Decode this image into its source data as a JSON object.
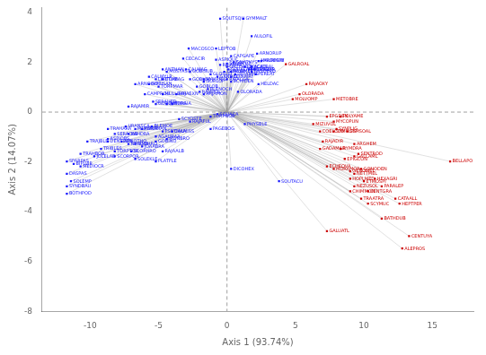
{
  "chart_data": {
    "type": "scatter",
    "xlabel": "Axis 1 (93.74%)",
    "ylabel": "Axis 2 (14.07%)",
    "xlim": [
      -13.5,
      18
    ],
    "ylim": [
      -8,
      4.2
    ],
    "xticks": [
      -10,
      -5,
      0,
      5,
      10,
      15
    ],
    "yticks": [
      4,
      2,
      0,
      -2,
      -4,
      -6,
      -8
    ],
    "grid": false,
    "data_labels": true,
    "series": [
      {
        "color": "#1a1aff",
        "marker": "square",
        "points": [
          {
            "label": "SQUTSQU",
            "x": -0.5,
            "y": 3.75
          },
          {
            "label": "GYMMALT",
            "x": 1.2,
            "y": 3.75
          },
          {
            "label": "AULOFIL",
            "x": 1.8,
            "y": 3.05
          },
          {
            "label": "MACOSCO",
            "x": -2.8,
            "y": 2.55
          },
          {
            "label": "LEPTOB",
            "x": -0.8,
            "y": 2.55
          },
          {
            "label": "ARNORUP",
            "x": 2.2,
            "y": 2.35
          },
          {
            "label": "CAPGAPE",
            "x": 0.3,
            "y": 2.25
          },
          {
            "label": "ARDESPY",
            "x": 2.5,
            "y": 2.05
          },
          {
            "label": "CECACIR",
            "x": -3.2,
            "y": 2.15
          },
          {
            "label": "ASPIOUC",
            "x": -0.8,
            "y": 2.1
          },
          {
            "label": "GNATHYS",
            "x": 0.5,
            "y": 2.0
          },
          {
            "label": "SCORELO",
            "x": 0.0,
            "y": 1.95
          },
          {
            "label": "RAJAMAE",
            "x": -0.5,
            "y": 1.9
          },
          {
            "label": "GAZDAED",
            "x": 0.0,
            "y": 1.82
          },
          {
            "label": "ACATRAL",
            "x": 1.8,
            "y": 1.82
          },
          {
            "label": "MAURMUB",
            "x": 2.3,
            "y": 2.05
          },
          {
            "label": "ANTHAN",
            "x": -4.7,
            "y": 1.72
          },
          {
            "label": "MUSTAST",
            "x": -4.4,
            "y": 1.62
          },
          {
            "label": "CALMAG",
            "x": -3.0,
            "y": 1.72
          },
          {
            "label": "GOBISUB",
            "x": -2.7,
            "y": 1.62
          },
          {
            "label": "RAJAMEL",
            "x": 0.3,
            "y": 1.62
          },
          {
            "label": "TRISCAP",
            "x": -0.2,
            "y": 1.62
          },
          {
            "label": "TRIGLYR",
            "x": 2.0,
            "y": 1.72
          },
          {
            "label": "CALMYLR",
            "x": -5.7,
            "y": 1.42
          },
          {
            "label": "LEPTCAE",
            "x": -5.2,
            "y": 1.32
          },
          {
            "label": "ETHMAG",
            "x": -4.7,
            "y": 1.32
          },
          {
            "label": "GOBLIM",
            "x": -2.7,
            "y": 1.32
          },
          {
            "label": "RAJACLA",
            "x": 0.0,
            "y": 1.32
          },
          {
            "label": "GORLOP",
            "x": -1.7,
            "y": 1.22
          },
          {
            "label": "ARNOIMP",
            "x": -6.7,
            "y": 1.12
          },
          {
            "label": "GOBISAN",
            "x": -5.7,
            "y": 1.12
          },
          {
            "label": "TORPMAR",
            "x": -5.0,
            "y": 1.02
          },
          {
            "label": "GOBLOB",
            "x": -2.2,
            "y": 1.02
          },
          {
            "label": "BLENOCH",
            "x": -1.4,
            "y": 0.92
          },
          {
            "label": "RAJAPOL",
            "x": -2.0,
            "y": 0.82
          },
          {
            "label": "CAMPROU",
            "x": -6.0,
            "y": 0.72
          },
          {
            "label": "MULLBAR",
            "x": -4.7,
            "y": 0.72
          },
          {
            "label": "RAJAEXN",
            "x": -3.7,
            "y": 0.72
          },
          {
            "label": "RAJAMON",
            "x": -1.7,
            "y": 0.72
          },
          {
            "label": "SERAHED",
            "x": -5.4,
            "y": 0.42
          },
          {
            "label": "GORQIM",
            "x": -5.2,
            "y": 0.32
          },
          {
            "label": "PHYMIG",
            "x": -4.4,
            "y": 0.32
          },
          {
            "label": "TORAIA",
            "x": -4.0,
            "y": 0.32
          },
          {
            "label": "RAJAMIR",
            "x": -7.2,
            "y": 0.22
          },
          {
            "label": "RAJAFUL",
            "x": -2.7,
            "y": -0.38
          },
          {
            "label": "SCYOSTE",
            "x": -3.5,
            "y": -0.28
          },
          {
            "label": "URANSCA",
            "x": -7.4,
            "y": -0.58
          },
          {
            "label": "BLEMOE",
            "x": -5.5,
            "y": -0.58
          },
          {
            "label": "MUKMOR",
            "x": -6.7,
            "y": -0.68
          },
          {
            "label": "PORFMAN",
            "x": -6.2,
            "y": -0.68
          },
          {
            "label": "PSETMAA",
            "x": -4.7,
            "y": -0.78
          },
          {
            "label": "CALMISS",
            "x": -4.0,
            "y": -0.78
          },
          {
            "label": "TRAHARA",
            "x": -8.7,
            "y": -0.68
          },
          {
            "label": "SERACAB",
            "x": -8.2,
            "y": -0.88
          },
          {
            "label": "RAHDRA",
            "x": -7.2,
            "y": -0.88
          },
          {
            "label": "AGALMAA",
            "x": -5.2,
            "y": -0.98
          },
          {
            "label": "MONBRO",
            "x": -4.4,
            "y": -1.08
          },
          {
            "label": "ASPIOBS",
            "x": -8.7,
            "y": -1.08
          },
          {
            "label": "ARNOTHO",
            "x": -7.7,
            "y": -1.18
          },
          {
            "label": "GOBINO",
            "x": -5.2,
            "y": -1.18
          },
          {
            "label": "DENTDEN",
            "x": -8.7,
            "y": -1.18
          },
          {
            "label": "SCOHRO",
            "x": -6.7,
            "y": -1.28
          },
          {
            "label": "NPHIMB",
            "x": -7.2,
            "y": -1.28
          },
          {
            "label": "JUAABRA",
            "x": -6.2,
            "y": -1.38
          },
          {
            "label": "TRAJBLE",
            "x": -10.2,
            "y": -1.18
          },
          {
            "label": "TRIBLES",
            "x": -9.2,
            "y": -1.48
          },
          {
            "label": "TORPTOR",
            "x": -8.2,
            "y": -1.58
          },
          {
            "label": "SCORHRO",
            "x": -7.0,
            "y": -1.58
          },
          {
            "label": "RAJAALB",
            "x": -4.7,
            "y": -1.58
          },
          {
            "label": "TRAHBOB",
            "x": -10.7,
            "y": -1.68
          },
          {
            "label": "JOLELAB",
            "x": -9.7,
            "y": -1.78
          },
          {
            "label": "SCORPOR",
            "x": -8.2,
            "y": -1.78
          },
          {
            "label": "SOLEKLE",
            "x": -6.7,
            "y": -1.88
          },
          {
            "label": "PLATFLE",
            "x": -5.2,
            "y": -1.98
          },
          {
            "label": "SPARPAS",
            "x": -11.7,
            "y": -1.98
          },
          {
            "label": "BIPLVIR",
            "x": -11.2,
            "y": -2.08
          },
          {
            "label": "MEDIOCR",
            "x": -10.7,
            "y": -2.18
          },
          {
            "label": "DASPAS",
            "x": -11.7,
            "y": -2.48
          },
          {
            "label": "SOLEMP",
            "x": -11.4,
            "y": -2.78
          },
          {
            "label": "SYNDBAU",
            "x": -11.7,
            "y": -2.98
          },
          {
            "label": "BOTHPOD",
            "x": -11.7,
            "y": -3.28
          },
          {
            "label": "SOUTACU",
            "x": 3.8,
            "y": -2.78
          },
          {
            "label": "SQUACA",
            "x": -0.7,
            "y": -0.08
          },
          {
            "label": "TORPNOB",
            "x": -1.2,
            "y": -0.18
          },
          {
            "label": "PAGEBOG",
            "x": -1.2,
            "y": -0.68
          },
          {
            "label": "DICOHEX",
            "x": 0.3,
            "y": -2.28
          },
          {
            "label": "PHYSBLE",
            "x": 1.3,
            "y": -0.48
          },
          {
            "label": "GLOSLEI",
            "x": -1.2,
            "y": 1.52
          },
          {
            "label": "GANDIS",
            "x": -0.7,
            "y": 1.42
          },
          {
            "label": "ECHIDEN",
            "x": 0.3,
            "y": 1.22
          },
          {
            "label": "HELDAC",
            "x": 2.3,
            "y": 1.12
          },
          {
            "label": "OLORADA",
            "x": 0.8,
            "y": 0.82
          },
          {
            "label": "NYMPNIG",
            "x": -1.7,
            "y": 1.32
          },
          {
            "label": "SQUALAR",
            "x": 0.1,
            "y": 1.72
          },
          {
            "label": "LEPAMHS",
            "x": 0.6,
            "y": 1.52
          },
          {
            "label": "LEPAMRY",
            "x": 0.3,
            "y": 1.42
          },
          {
            "label": "BASOPRO",
            "x": 1.8,
            "y": 1.62
          },
          {
            "label": "PEREAT",
            "x": 2.1,
            "y": 1.52
          },
          {
            "label": "MICHAS",
            "x": 1.6,
            "y": 1.72
          },
          {
            "label": "MICSOPA",
            "x": 1.8,
            "y": 1.72
          },
          {
            "label": "LEPICAU",
            "x": 1.3,
            "y": 1.82
          }
        ]
      },
      {
        "color": "#cc0000",
        "marker": "square",
        "points": [
          {
            "label": "GALROAL",
            "x": 4.3,
            "y": 1.92
          },
          {
            "label": "RAJAOXY",
            "x": 5.8,
            "y": 1.12
          },
          {
            "label": "MOLVOMP",
            "x": 4.8,
            "y": 0.52
          },
          {
            "label": "OLORADA",
            "x": 5.3,
            "y": 0.72
          },
          {
            "label": "METOBRE",
            "x": 7.8,
            "y": 0.52
          },
          {
            "label": "POLYAME",
            "x": 8.3,
            "y": -0.18
          },
          {
            "label": "EPGDEN",
            "x": 7.3,
            "y": -0.18
          },
          {
            "label": "MYCOPUN",
            "x": 7.8,
            "y": -0.38
          },
          {
            "label": "MIZUVOL",
            "x": 6.3,
            "y": -0.48
          },
          {
            "label": "COELCOD",
            "x": 6.8,
            "y": -0.78
          },
          {
            "label": "SYMHLIG",
            "x": 7.8,
            "y": -0.78
          },
          {
            "label": "SYNPLIG",
            "x": 8.0,
            "y": -0.68
          },
          {
            "label": "GALUATL",
            "x": 7.3,
            "y": -4.78
          },
          {
            "label": "SYMSOAL",
            "x": 8.8,
            "y": -0.78
          },
          {
            "label": "RAJADIR",
            "x": 7.0,
            "y": -1.18
          },
          {
            "label": "GADAMAR",
            "x": 6.8,
            "y": -1.48
          },
          {
            "label": "ARGHEM",
            "x": 9.3,
            "y": -1.28
          },
          {
            "label": "RYMDRA",
            "x": 8.3,
            "y": -1.48
          },
          {
            "label": "GALLAML",
            "x": 9.3,
            "y": -1.78
          },
          {
            "label": "SENTROD",
            "x": 9.6,
            "y": -1.68
          },
          {
            "label": "EPIGCON",
            "x": 8.6,
            "y": -1.88
          },
          {
            "label": "ECHEOVA",
            "x": 7.3,
            "y": -2.18
          },
          {
            "label": "MORAMOR",
            "x": 7.8,
            "y": -2.28
          },
          {
            "label": "GENOMEL",
            "x": 9.0,
            "y": -2.38
          },
          {
            "label": "GONODEN",
            "x": 9.8,
            "y": -2.28
          },
          {
            "label": "NETTMEL",
            "x": 9.3,
            "y": -2.48
          },
          {
            "label": "HOPLMED",
            "x": 9.0,
            "y": -2.68
          },
          {
            "label": "ETMOSPI",
            "x": 10.0,
            "y": -2.78
          },
          {
            "label": "HEXAGRI",
            "x": 10.8,
            "y": -2.68
          },
          {
            "label": "NEZUSOL",
            "x": 9.3,
            "y": -2.98
          },
          {
            "label": "CHIMMON",
            "x": 9.0,
            "y": -3.18
          },
          {
            "label": "CENTGRA",
            "x": 10.3,
            "y": -3.18
          },
          {
            "label": "PARALEP",
            "x": 11.3,
            "y": -2.98
          },
          {
            "label": "TRAATRA",
            "x": 9.8,
            "y": -3.48
          },
          {
            "label": "SCYMUC",
            "x": 10.3,
            "y": -3.68
          },
          {
            "label": "CATAALL",
            "x": 12.3,
            "y": -3.48
          },
          {
            "label": "HEPTPER",
            "x": 12.6,
            "y": -3.68
          },
          {
            "label": "BATHDUB",
            "x": 11.3,
            "y": -4.28
          },
          {
            "label": "CENTUYA",
            "x": 13.3,
            "y": -4.98
          },
          {
            "label": "ALEPROS",
            "x": 12.8,
            "y": -5.48
          },
          {
            "label": "BELLAPO",
            "x": 16.3,
            "y": -1.98
          }
        ]
      }
    ]
  }
}
